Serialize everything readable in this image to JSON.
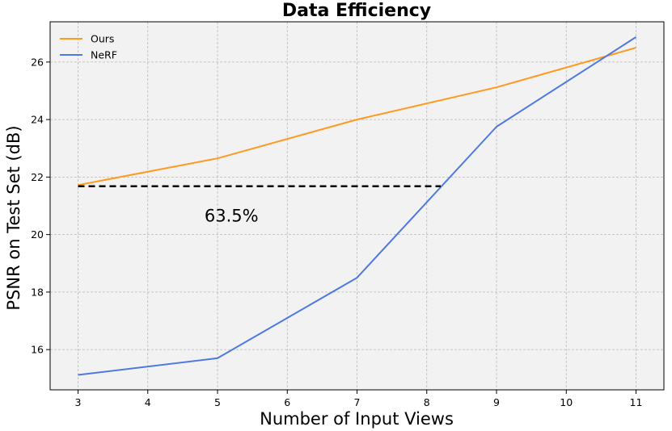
{
  "chart_data": {
    "type": "line",
    "title": "Data Efficiency",
    "xlabel": "Number of Input Views",
    "ylabel": "PSNR on Test Set (dB)",
    "x_ticks": [
      3,
      4,
      5,
      6,
      7,
      8,
      9,
      10,
      11
    ],
    "y_ticks": [
      16,
      18,
      20,
      22,
      24,
      26
    ],
    "xlim": [
      2.6,
      11.4
    ],
    "ylim": [
      14.6,
      27.4
    ],
    "grid": true,
    "background": "#f2f2f2",
    "legend_position": "top-left",
    "series": [
      {
        "name": "Ours",
        "color": "#ff9a1f",
        "x": [
          3,
          5,
          7,
          9,
          11
        ],
        "y": [
          21.72,
          22.65,
          24.0,
          25.12,
          26.5
        ]
      },
      {
        "name": "NeRF",
        "color": "#4f79e0",
        "x": [
          3,
          5,
          7,
          9,
          11
        ],
        "y": [
          15.12,
          15.7,
          18.5,
          23.75,
          26.87
        ]
      }
    ],
    "annotations": [
      {
        "type": "dashed-line",
        "color": "#000000",
        "x_start": 3,
        "x_end": 8.2,
        "y": 21.68
      },
      {
        "type": "text",
        "text": "63.5%",
        "x": 5.2,
        "y": 20.45
      }
    ]
  }
}
